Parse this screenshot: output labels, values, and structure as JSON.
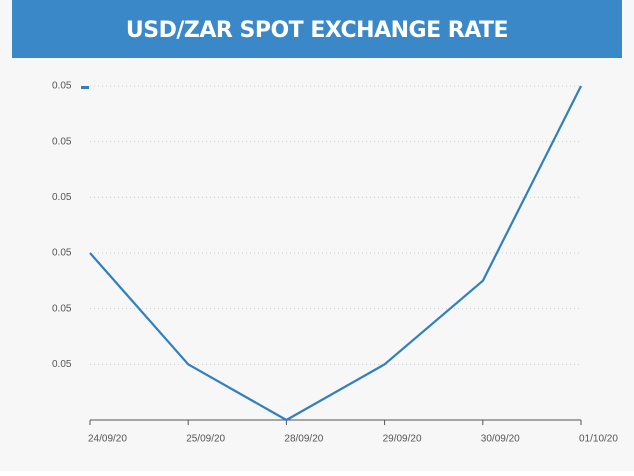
{
  "chart_data": {
    "type": "line",
    "title": "USD/ZAR SPOT EXCHANGE RATE",
    "categories": [
      "24/09/20",
      "25/09/20",
      "28/09/20",
      "29/09/20",
      "30/09/20",
      "01/10/20"
    ],
    "series": [
      {
        "color": "#2f7fc1",
        "values": [
          0.0503,
          0.0501,
          0.05,
          0.0501,
          0.05025,
          0.0506
        ]
      }
    ],
    "ylim": [
      0.05,
      0.0506
    ],
    "yticks": [
      {
        "value": 0.0501,
        "label": "0.05"
      },
      {
        "value": 0.0502,
        "label": "0.05"
      },
      {
        "value": 0.0503,
        "label": "0.05"
      },
      {
        "value": 0.0504,
        "label": "0.05"
      },
      {
        "value": 0.0505,
        "label": "0.05"
      },
      {
        "value": 0.0506,
        "label": "0.05"
      }
    ],
    "grid": true
  }
}
